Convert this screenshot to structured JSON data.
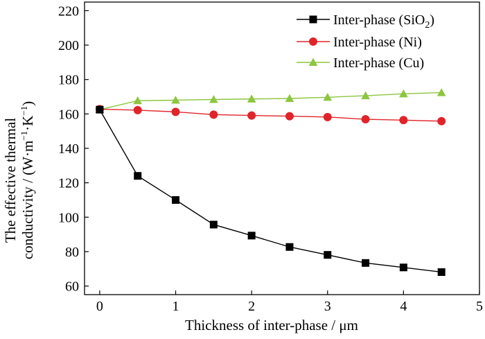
{
  "chart_data": {
    "type": "line",
    "xlabel": "Thickness of inter-phase / μm",
    "ylabel_line1": "The effective thermal",
    "ylabel_line2_main": "conductivity / (W·m",
    "ylabel_line2_sup1": "−1",
    "ylabel_line2_mid": "·K",
    "ylabel_line2_sup2": "−1",
    "ylabel_line2_end": ")",
    "xlim": [
      -0.2,
      5
    ],
    "ylim": [
      55,
      225
    ],
    "xticks": [
      0,
      1,
      2,
      3,
      4,
      5
    ],
    "yticks": [
      60,
      80,
      100,
      120,
      140,
      160,
      180,
      200,
      220
    ],
    "x": [
      0,
      0.5,
      1,
      1.5,
      2,
      2.5,
      3,
      3.5,
      4,
      4.5
    ],
    "series": [
      {
        "name": "Inter-phase (SiO2)",
        "legend_main": "Inter-phase (SiO",
        "legend_sub": "2",
        "legend_end": ")",
        "color": "#000000",
        "marker": "square",
        "values": [
          162.5,
          124,
          110,
          95.7,
          89.3,
          82.7,
          78.1,
          73.4,
          70.8,
          68.1
        ]
      },
      {
        "name": "Inter-phase (Ni)",
        "color": "#e0242a",
        "marker": "circle",
        "values": [
          162.8,
          162.2,
          161.2,
          159.6,
          159.1,
          158.7,
          158.2,
          156.9,
          156.4,
          155.8
        ]
      },
      {
        "name": "Inter-phase (Cu)",
        "color": "#8cc63f",
        "marker": "triangle",
        "values": [
          162.5,
          167.7,
          168,
          168.4,
          168.7,
          169,
          169.7,
          170.6,
          171.7,
          172.4
        ]
      }
    ],
    "legend_position": "top-right",
    "grid": false
  }
}
